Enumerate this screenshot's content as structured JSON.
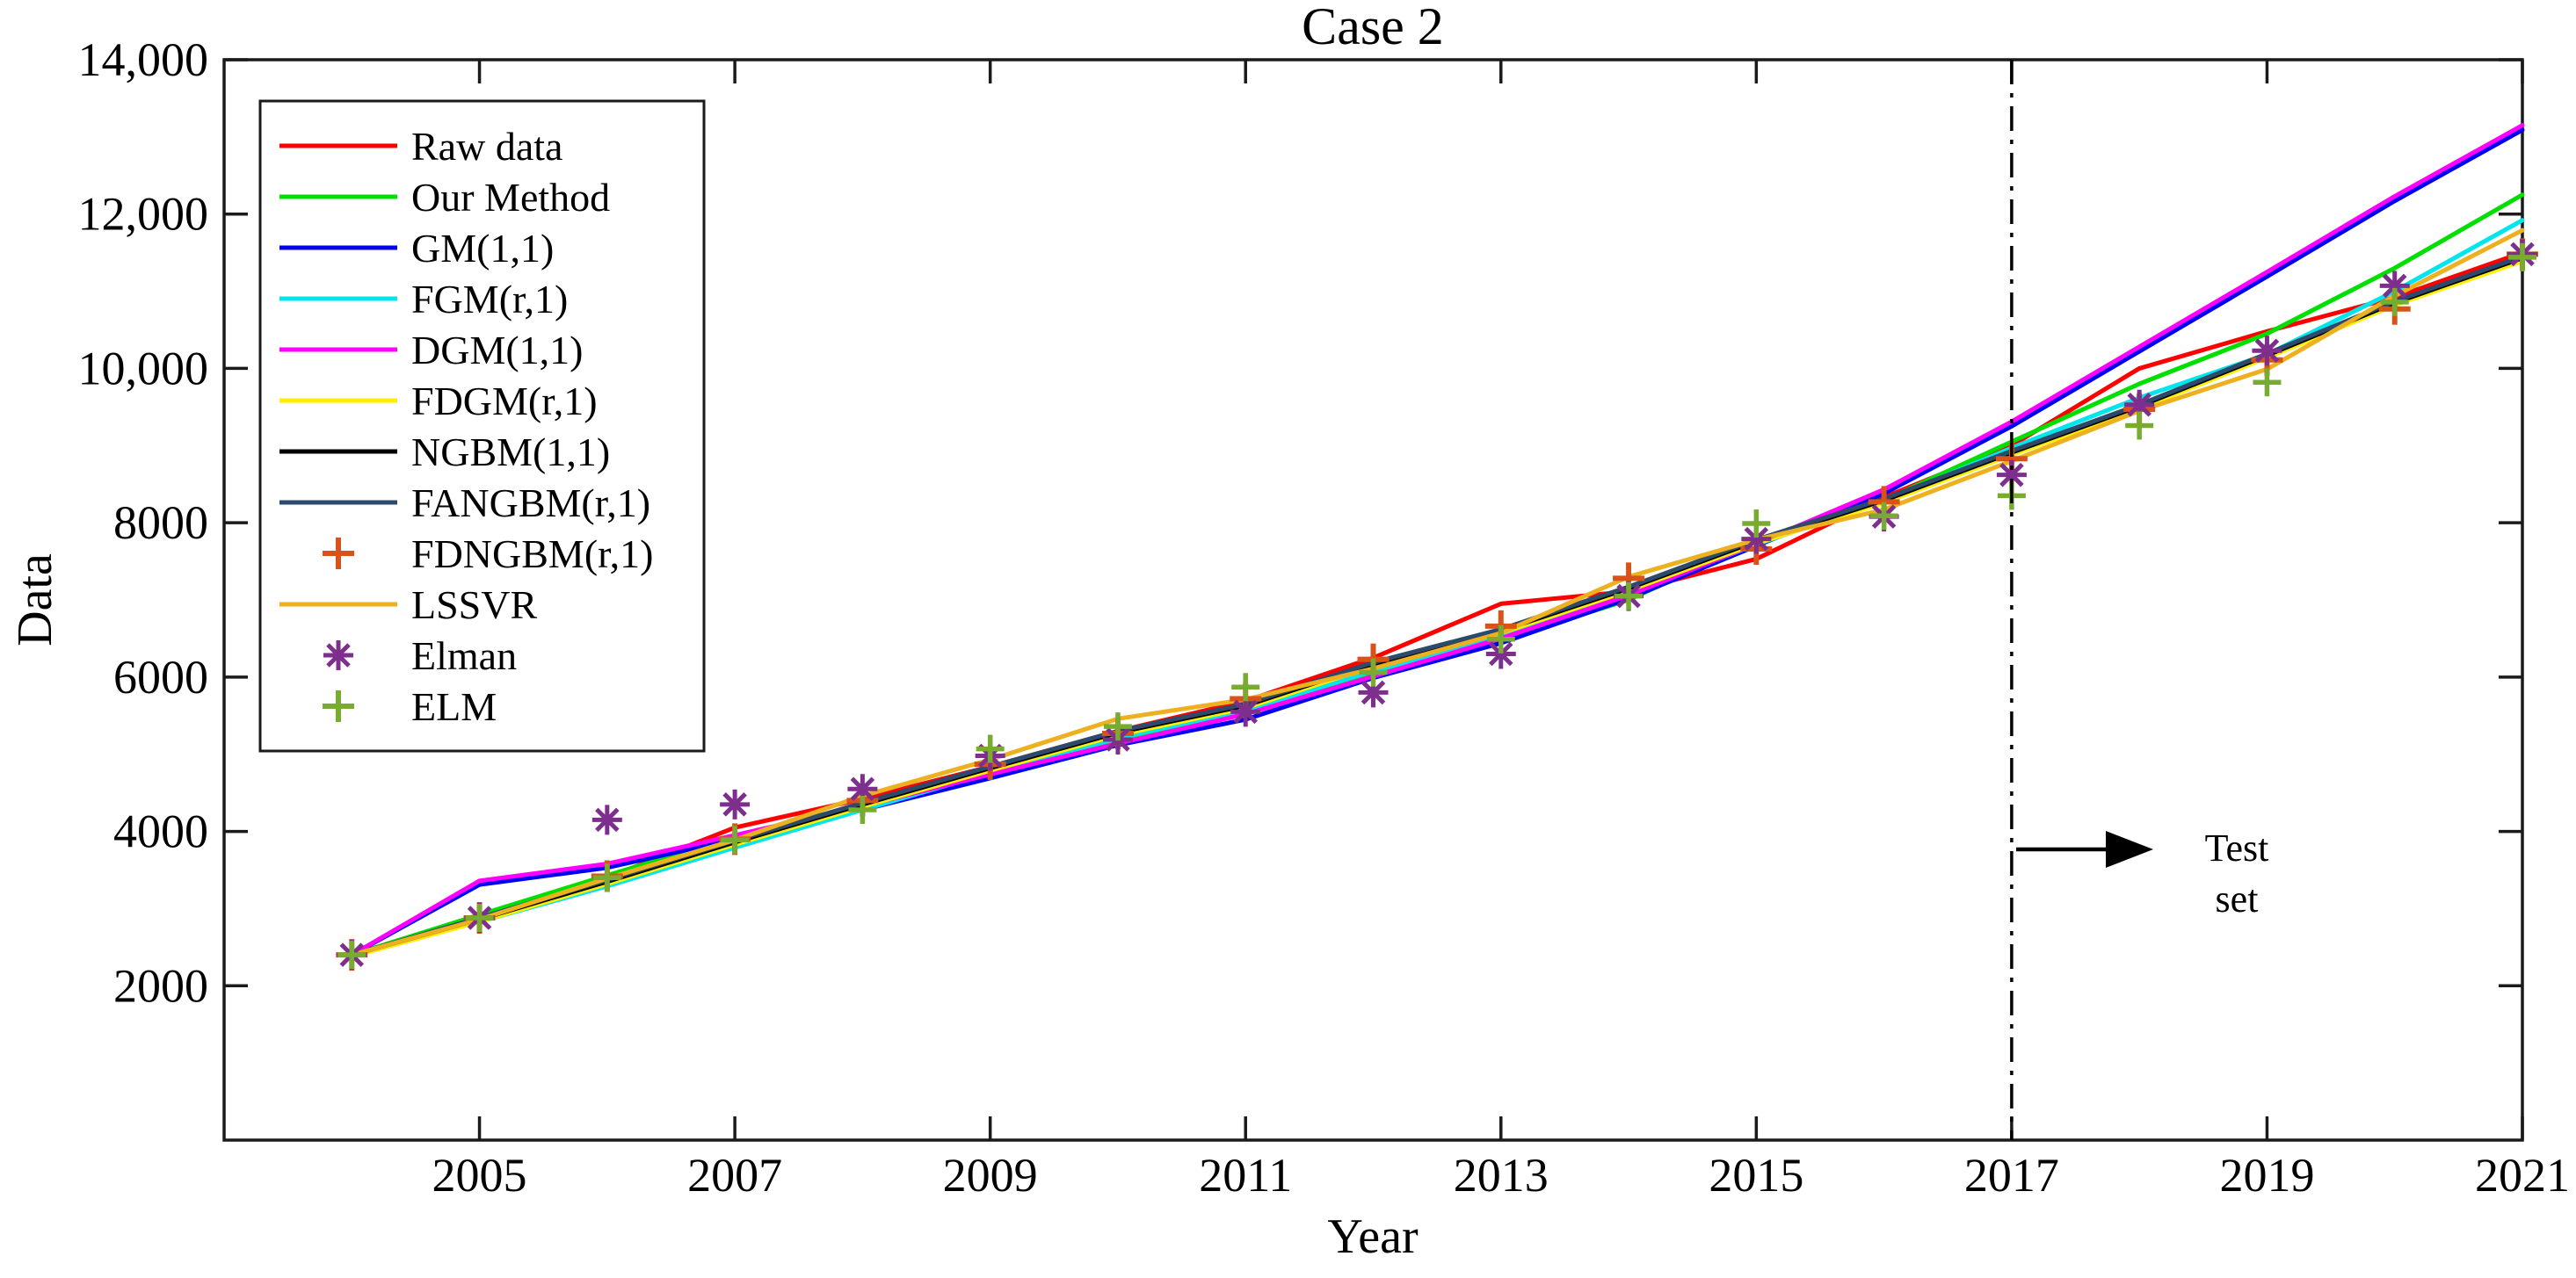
{
  "figure": {
    "title": "Case 2",
    "x_axis_label": "Year",
    "y_axis_label": "Data",
    "annotation": {
      "line1": "Test",
      "line2": "set"
    },
    "background_color": "#ffffff",
    "axis_color": "#1a1a1a"
  },
  "legend": {
    "position": "top-left",
    "items": [
      {
        "label": "Raw data",
        "color": "#ff0000",
        "sample": "line"
      },
      {
        "label": "Our Method",
        "color": "#00e000",
        "sample": "line"
      },
      {
        "label": "GM(1,1)",
        "color": "#0000ee",
        "sample": "line"
      },
      {
        "label": "FGM(r,1)",
        "color": "#00e5ee",
        "sample": "line"
      },
      {
        "label": "DGM(1,1)",
        "color": "#ff00ff",
        "sample": "line"
      },
      {
        "label": "FDGM(r,1)",
        "color": "#ffee00",
        "sample": "line"
      },
      {
        "label": "NGBM(1,1)",
        "color": "#000000",
        "sample": "line"
      },
      {
        "label": "FANGBM(r,1)",
        "color": "#2e4a6b",
        "sample": "line"
      },
      {
        "label": "FDNGBM(r,1)",
        "color": "#d95319",
        "sample": "plus"
      },
      {
        "label": "LSSVR",
        "color": "#edb120",
        "sample": "line"
      },
      {
        "label": "Elman",
        "color": "#7e2f8e",
        "sample": "asterisk"
      },
      {
        "label": "ELM",
        "color": "#77ac30",
        "sample": "plus"
      }
    ]
  },
  "chart_data": {
    "type": "line",
    "title": "Case 2",
    "xlabel": "Year",
    "ylabel": "Data",
    "grid": false,
    "legend_position": "top-left",
    "xlim": [
      2003,
      2021
    ],
    "ylim": [
      0,
      14000
    ],
    "xticks": {
      "values": [
        2005,
        2007,
        2009,
        2011,
        2013,
        2015,
        2017,
        2019,
        2021
      ],
      "labels": [
        "2005",
        "2007",
        "2009",
        "2011",
        "2013",
        "2015",
        "2017",
        "2019",
        "2021"
      ]
    },
    "yticks": {
      "values": [
        2000,
        4000,
        6000,
        8000,
        10000,
        12000,
        14000
      ],
      "labels": [
        "2000",
        "4000",
        "6000",
        "8000",
        "10,000",
        "12,000",
        "14,000"
      ]
    },
    "test_split": {
      "x": 2017,
      "style": "dash-dot",
      "label": "Test set"
    },
    "x": [
      2004,
      2005,
      2006,
      2007,
      2008,
      2009,
      2010,
      2011,
      2012,
      2013,
      2014,
      2015,
      2016,
      2017,
      2018,
      2019,
      2020,
      2021
    ],
    "series": [
      {
        "name": "Raw data",
        "color": "#ff0000",
        "draw": "line",
        "marker": null,
        "values": [
          2400,
          2880,
          3400,
          4050,
          4420,
          4840,
          5300,
          5690,
          6250,
          6950,
          7110,
          7530,
          8330,
          9000,
          10000,
          10480,
          10920,
          11500
        ]
      },
      {
        "name": "Our Method",
        "color": "#00e000",
        "draw": "line",
        "marker": null,
        "values": [
          2400,
          2920,
          3430,
          3930,
          4350,
          4720,
          5150,
          5530,
          6050,
          6480,
          7000,
          7760,
          8290,
          9050,
          9800,
          10450,
          11300,
          12250
        ]
      },
      {
        "name": "GM(1,1)",
        "color": "#0000ee",
        "draw": "line",
        "marker": null,
        "values": [
          2400,
          3310,
          3530,
          3900,
          4280,
          4690,
          5120,
          5450,
          5990,
          6440,
          7020,
          7700,
          8380,
          9250,
          10220,
          11190,
          12170,
          13090
        ]
      },
      {
        "name": "FGM(r,1)",
        "color": "#00e5ee",
        "draw": "line",
        "marker": null,
        "values": [
          2400,
          2830,
          3290,
          3790,
          4280,
          4760,
          5210,
          5570,
          6080,
          6520,
          7080,
          7720,
          8280,
          8970,
          9620,
          10180,
          11000,
          11920
        ]
      },
      {
        "name": "DGM(1,1)",
        "color": "#ff00ff",
        "draw": "line",
        "marker": null,
        "values": [
          2400,
          3360,
          3580,
          3950,
          4330,
          4740,
          5140,
          5520,
          6010,
          6500,
          7060,
          7730,
          8430,
          9310,
          10280,
          11250,
          12230,
          13150
        ]
      },
      {
        "name": "FDGM(r,1)",
        "color": "#ffee00",
        "draw": "line",
        "marker": null,
        "values": [
          2380,
          2830,
          3320,
          3830,
          4320,
          4790,
          5250,
          5600,
          6140,
          6570,
          7120,
          7730,
          8260,
          8880,
          9480,
          10140,
          10820,
          11390
        ]
      },
      {
        "name": "NGBM(1,1)",
        "color": "#000000",
        "draw": "line",
        "marker": null,
        "values": [
          2400,
          2860,
          3350,
          3860,
          4350,
          4820,
          5280,
          5630,
          6170,
          6600,
          7150,
          7760,
          8290,
          8910,
          9510,
          10170,
          10850,
          11430
        ]
      },
      {
        "name": "FANGBM(r,1)",
        "color": "#2e4a6b",
        "draw": "line",
        "marker": null,
        "values": [
          2400,
          2880,
          3370,
          3880,
          4370,
          4840,
          5300,
          5650,
          6190,
          6620,
          7170,
          7780,
          8310,
          8930,
          9530,
          10190,
          10870,
          11450
        ]
      },
      {
        "name": "LSSVR",
        "color": "#edb120",
        "draw": "line",
        "marker": null,
        "values": [
          2400,
          2860,
          3390,
          3890,
          4460,
          4930,
          5460,
          5710,
          6110,
          6570,
          7300,
          7780,
          8170,
          8800,
          9450,
          9990,
          10940,
          11790
        ]
      },
      {
        "name": "FDNGBM(r,1)",
        "color": "#d95319",
        "draw": "marker",
        "marker": "plus",
        "values": [
          2400,
          2880,
          3420,
          3900,
          4400,
          4870,
          5270,
          5720,
          6230,
          6660,
          7280,
          7660,
          8270,
          8830,
          9470,
          10110,
          10770,
          11480
        ]
      },
      {
        "name": "Elman",
        "color": "#7e2f8e",
        "draw": "marker",
        "marker": "asterisk",
        "values": [
          2400,
          2880,
          4150,
          4350,
          4550,
          4980,
          5190,
          5550,
          5800,
          6300,
          7050,
          7790,
          8080,
          8620,
          9530,
          10230,
          11070,
          11480
        ]
      },
      {
        "name": "ELM",
        "color": "#77ac30",
        "draw": "marker",
        "marker": "plus",
        "values": [
          2400,
          2880,
          3400,
          3890,
          4280,
          5070,
          5360,
          5870,
          6060,
          6490,
          7050,
          7990,
          8090,
          8350,
          9260,
          9820,
          10860,
          11440
        ]
      }
    ]
  }
}
